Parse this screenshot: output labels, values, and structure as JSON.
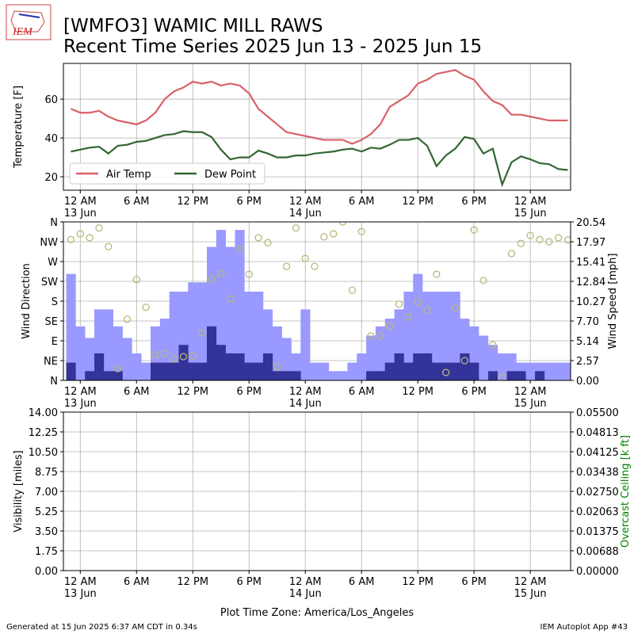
{
  "header": {
    "title": "[WMFO3] WAMIC MILL RAWS",
    "subtitle": "Recent Time Series 2025 Jun 13 - 2025 Jun 15",
    "logo": "IEM"
  },
  "footer": {
    "timezone": "Plot Time Zone: America/Los_Angeles",
    "generated": "Generated at 15 Jun 2025 6:37 AM CDT in 0.34s",
    "app": "IEM Autoplot App #43"
  },
  "chart_data": [
    {
      "type": "line",
      "ylabel": "Temperature [F]",
      "grid": true,
      "legend": "lower left",
      "xlim": [
        -1.8,
        52.3
      ],
      "ylim": [
        13.1,
        78.4
      ],
      "yticks": [
        20,
        40,
        60
      ],
      "xticks": [
        {
          "value": 0,
          "label": "12 AM\n13 Jun"
        },
        {
          "value": 6,
          "label": "6 AM"
        },
        {
          "value": 12,
          "label": "12 PM"
        },
        {
          "value": 18,
          "label": "6 PM"
        },
        {
          "value": 24,
          "label": "12 AM\n14 Jun"
        },
        {
          "value": 30,
          "label": "6 AM"
        },
        {
          "value": 36,
          "label": "12 PM"
        },
        {
          "value": 42,
          "label": "6 PM"
        },
        {
          "value": 48,
          "label": "12 AM\n15 Jun"
        }
      ],
      "x": [
        -1,
        0,
        1,
        2,
        3,
        4,
        5,
        6,
        7,
        8,
        9,
        10,
        11,
        12,
        13,
        14,
        15,
        16,
        17,
        18,
        19,
        20,
        21,
        22,
        23,
        24,
        25,
        26,
        27,
        28,
        29,
        30,
        31,
        32,
        33,
        34,
        35,
        36,
        37,
        38,
        39,
        40,
        41,
        42,
        43,
        44,
        45,
        46,
        47,
        48,
        49,
        50,
        51,
        52
      ],
      "series": [
        {
          "name": "Air Temp",
          "color": "#d9606a",
          "values": [
            55,
            53,
            53,
            54,
            51,
            49,
            48,
            47,
            49,
            53,
            60,
            64,
            66,
            69,
            68,
            69,
            67,
            68,
            67,
            63,
            55,
            51,
            47,
            43,
            42,
            41,
            40,
            39,
            39,
            39,
            37,
            39,
            42,
            47,
            56,
            59,
            62,
            68,
            70,
            73,
            74,
            75,
            72,
            70,
            64,
            59,
            57,
            52,
            52,
            51,
            50,
            49,
            49,
            49
          ]
        },
        {
          "name": "Dew Point",
          "color": "#336633",
          "values": [
            33,
            34,
            35,
            35.5,
            32,
            36,
            36.5,
            38,
            38.5,
            40,
            41.5,
            42,
            43.5,
            43,
            43,
            40.5,
            34,
            29,
            30,
            30,
            33.5,
            32,
            30,
            30,
            31,
            31,
            32,
            32.5,
            33,
            34,
            34.5,
            33,
            35,
            34.5,
            36.5,
            39,
            39,
            40,
            36,
            25.5,
            31,
            34.5,
            40.5,
            39.5,
            32,
            34.5,
            16,
            27.5,
            30.5,
            29,
            27,
            26.5,
            24,
            23.5
          ]
        }
      ]
    },
    {
      "type": "bar",
      "ylabel": "Wind Direction",
      "y2label": "Wind Speed [mph]",
      "grid": true,
      "xlim": [
        -1.8,
        52.3
      ],
      "ylim": [
        0,
        360
      ],
      "yticks": [
        {
          "value": 0,
          "label": "N"
        },
        {
          "value": 45,
          "label": "NE"
        },
        {
          "value": 90,
          "label": "E"
        },
        {
          "value": 135,
          "label": "SE"
        },
        {
          "value": 180,
          "label": "S"
        },
        {
          "value": 225,
          "label": "SW"
        },
        {
          "value": 270,
          "label": "W"
        },
        {
          "value": 315,
          "label": "NW"
        },
        {
          "value": 360,
          "label": "N"
        }
      ],
      "y2lim": [
        0,
        20.54
      ],
      "y2ticks": [
        {
          "value": 0,
          "label": "0.00"
        },
        2.57,
        5.14,
        {
          "value": 7.7,
          "label": "7.70"
        },
        10.27,
        12.84,
        15.41,
        17.97,
        20.54
      ],
      "xticks": [
        {
          "value": 0,
          "label": "12 AM\n13 Jun"
        },
        {
          "value": 6,
          "label": "6 AM"
        },
        {
          "value": 12,
          "label": "12 PM"
        },
        {
          "value": 18,
          "label": "6 PM"
        },
        {
          "value": 24,
          "label": "12 AM\n14 Jun"
        },
        {
          "value": 30,
          "label": "6 AM"
        },
        {
          "value": 36,
          "label": "12 PM"
        },
        {
          "value": 42,
          "label": "6 PM"
        },
        {
          "value": 48,
          "label": "12 AM\n15 Jun"
        }
      ],
      "x": [
        -1,
        0,
        1,
        2,
        3,
        4,
        5,
        6,
        7,
        8,
        9,
        10,
        11,
        12,
        13,
        14,
        15,
        16,
        17,
        18,
        19,
        20,
        21,
        22,
        23,
        24,
        25,
        26,
        27,
        28,
        29,
        30,
        31,
        32,
        33,
        34,
        35,
        36,
        37,
        38,
        39,
        40,
        41,
        42,
        43,
        44,
        45,
        46,
        47,
        48,
        49,
        50,
        51,
        52
      ],
      "series": [
        {
          "type": "bar",
          "axis": "y2",
          "color": "#9999ff",
          "values": [
            13.8,
            7.0,
            5.5,
            9.2,
            9.2,
            7.0,
            5.5,
            3.5,
            2.3,
            7.0,
            8.0,
            11.5,
            11.5,
            12.7,
            12.7,
            17.3,
            19.5,
            17.3,
            19.5,
            11.5,
            11.5,
            9.2,
            7.0,
            5.5,
            3.5,
            9.2,
            2.3,
            2.3,
            1.2,
            1.2,
            2.3,
            3.5,
            5.8,
            7.0,
            8.0,
            9.2,
            11.5,
            13.8,
            11.5,
            11.5,
            11.5,
            11.5,
            8.0,
            7.0,
            5.8,
            4.6,
            3.5,
            3.5,
            2.3,
            2.3,
            2.3,
            2.3,
            2.3,
            2.3
          ]
        },
        {
          "type": "bar",
          "axis": "y2",
          "color": "#333399",
          "values": [
            2.3,
            0,
            1.2,
            3.5,
            1.2,
            1.2,
            0,
            0,
            0,
            2.3,
            2.3,
            2.3,
            4.6,
            2.3,
            2.3,
            7.0,
            4.6,
            3.5,
            3.5,
            2.3,
            2.3,
            3.5,
            1.2,
            1.2,
            1.2,
            0,
            0,
            0,
            0,
            0,
            0,
            0,
            1.2,
            1.2,
            2.3,
            3.5,
            2.3,
            3.5,
            3.5,
            2.3,
            2.3,
            2.3,
            3.5,
            2.3,
            0,
            1.2,
            0,
            1.2,
            1.2,
            0,
            1.2,
            0,
            0,
            0
          ]
        },
        {
          "type": "scatter",
          "color": "#b8b87a",
          "values": [
            320,
            333,
            324,
            346,
            304,
            27,
            139,
            229,
            166,
            58,
            61,
            49,
            54,
            56,
            108,
            229,
            243,
            185,
            299,
            241,
            324,
            313,
            31,
            259,
            346,
            277,
            259,
            326,
            333,
            360,
            205,
            338,
            101,
            101,
            124,
            173,
            144,
            178,
            160,
            241,
            18,
            164,
            45,
            342,
            227,
            81,
            7,
            288,
            311,
            329,
            320,
            315,
            324,
            319
          ]
        }
      ]
    },
    {
      "type": "line",
      "ylabel": "Visibility [miles]",
      "y2label": "Overcast Ceiling [k ft]",
      "y2label_color": "#008000",
      "grid": true,
      "xlim": [
        -1.8,
        52.3
      ],
      "ylim": [
        0,
        14
      ],
      "yticks": [
        {
          "value": 0,
          "label": "0.00"
        },
        1.75,
        {
          "value": 3.5,
          "label": "3.50"
        },
        5.25,
        {
          "value": 7,
          "label": "7.00"
        },
        8.75,
        {
          "value": 10.5,
          "label": "10.50"
        },
        12.25,
        {
          "value": 14,
          "label": "14.00"
        }
      ],
      "y2lim": [
        0,
        0.055
      ],
      "y2ticks": [
        {
          "value": 0,
          "label": "0.00000"
        },
        {
          "value": 0.00688,
          "label": "0.00688"
        },
        {
          "value": 0.01375,
          "label": "0.01375"
        },
        {
          "value": 0.02063,
          "label": "0.02063"
        },
        {
          "value": 0.0275,
          "label": "0.02750"
        },
        {
          "value": 0.03438,
          "label": "0.03438"
        },
        {
          "value": 0.04125,
          "label": "0.04125"
        },
        {
          "value": 0.04813,
          "label": "0.04813"
        },
        {
          "value": 0.055,
          "label": "0.05500"
        }
      ],
      "xticks": [
        {
          "value": 0,
          "label": "12 AM\n13 Jun"
        },
        {
          "value": 6,
          "label": "6 AM"
        },
        {
          "value": 12,
          "label": "12 PM"
        },
        {
          "value": 18,
          "label": "6 PM"
        },
        {
          "value": 24,
          "label": "12 AM\n14 Jun"
        },
        {
          "value": 30,
          "label": "6 AM"
        },
        {
          "value": 36,
          "label": "12 PM"
        },
        {
          "value": 42,
          "label": "6 PM"
        },
        {
          "value": 48,
          "label": "12 AM\n15 Jun"
        }
      ]
    }
  ]
}
